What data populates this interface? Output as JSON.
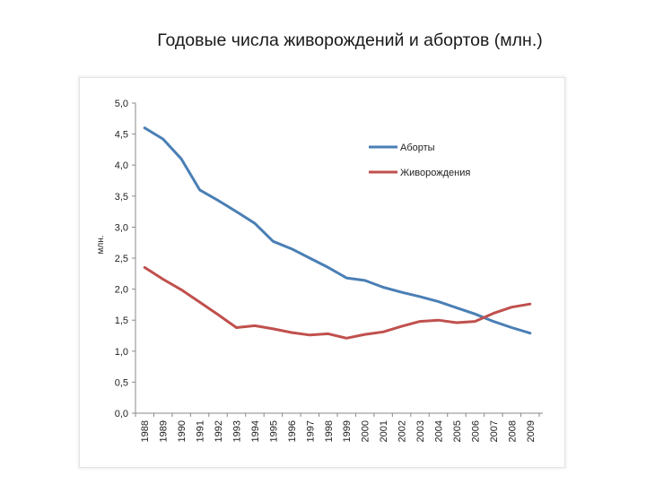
{
  "title": "Годовые числа живорождений и абортов (млн.)",
  "chart_data": {
    "type": "line",
    "ylabel": "млн.",
    "ylim": [
      0,
      5
    ],
    "yticks": [
      "0,0",
      "0,5",
      "1,0",
      "1,5",
      "2,0",
      "2,5",
      "3,0",
      "3,5",
      "4,0",
      "4,5",
      "5,0"
    ],
    "x": [
      "1988",
      "1989",
      "1990",
      "1991",
      "1992",
      "1993",
      "1994",
      "1995",
      "1996",
      "1997",
      "1998",
      "1999",
      "2000",
      "2001",
      "2002",
      "2003",
      "2004",
      "2005",
      "2006",
      "2007",
      "2008",
      "2009"
    ],
    "series": [
      {
        "name": "Аборты",
        "color": "#4a7fb5",
        "values": [
          4.6,
          4.42,
          4.1,
          3.6,
          3.43,
          3.25,
          3.06,
          2.77,
          2.65,
          2.5,
          2.35,
          2.18,
          2.14,
          2.03,
          1.95,
          1.88,
          1.8,
          1.7,
          1.6,
          1.48,
          1.38,
          1.29
        ]
      },
      {
        "name": "Живорождения",
        "color": "#c0504d",
        "values": [
          2.35,
          2.16,
          1.99,
          1.79,
          1.59,
          1.38,
          1.41,
          1.36,
          1.3,
          1.26,
          1.28,
          1.21,
          1.27,
          1.31,
          1.4,
          1.48,
          1.5,
          1.46,
          1.48,
          1.61,
          1.71,
          1.76
        ]
      }
    ],
    "legend": "top-right",
    "grid": false
  }
}
